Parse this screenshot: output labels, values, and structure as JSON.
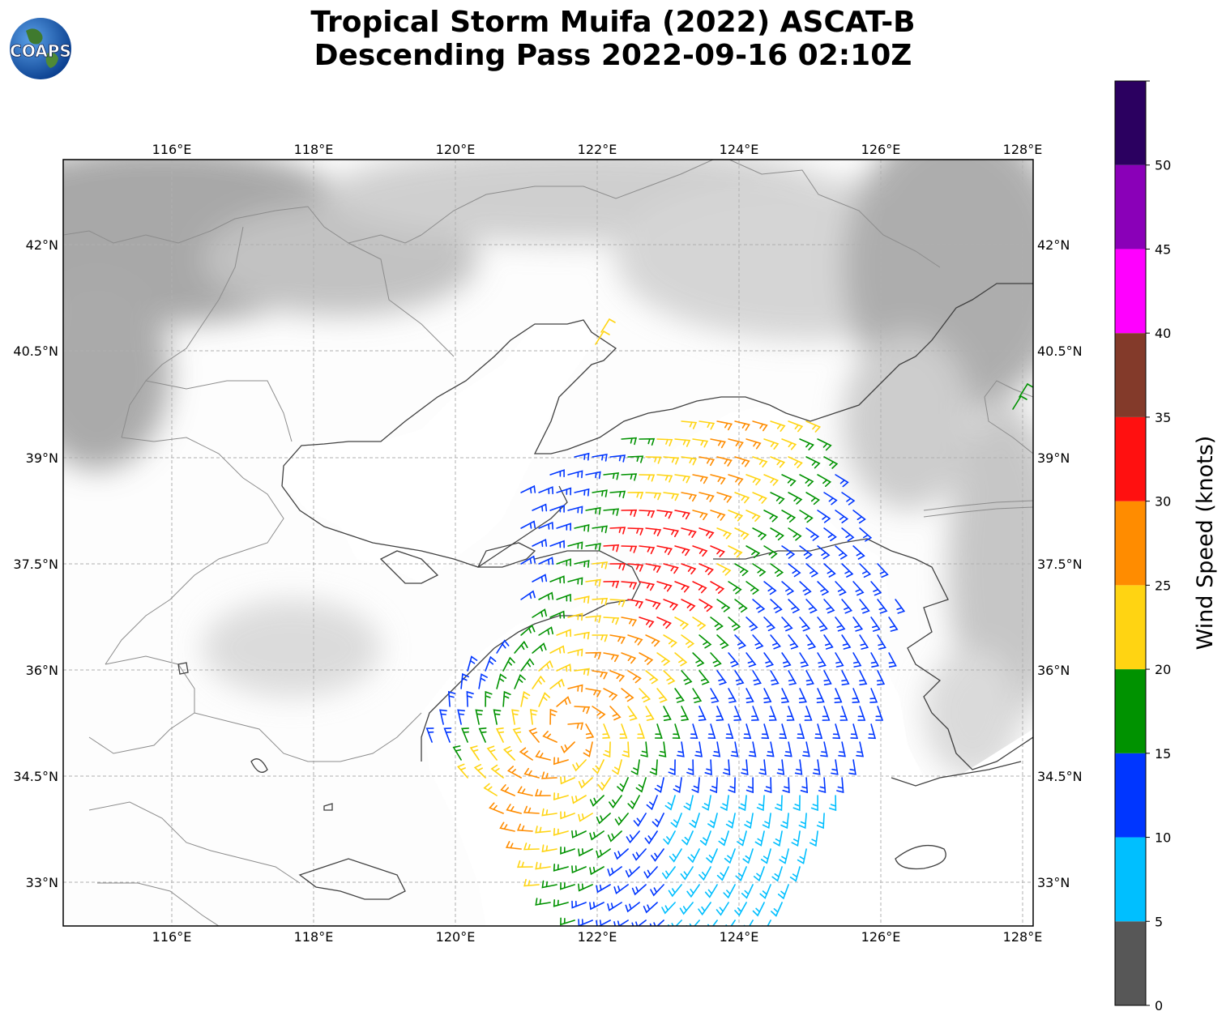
{
  "title": {
    "line1": "Tropical Storm Muifa (2022) ASCAT-B",
    "line2": "Descending Pass 2022-09-16 02:10Z"
  },
  "logo": {
    "text": "COAPS",
    "icon": "globe-logo-icon"
  },
  "map": {
    "lon_range": [
      114.5,
      128.15
    ],
    "lat_range": [
      32.45,
      43.25
    ],
    "lon_ticks": [
      "116°E",
      "118°E",
      "120°E",
      "122°E",
      "124°E",
      "126°E",
      "128°E"
    ],
    "lat_ticks": [
      "42°N",
      "40.5°N",
      "39°N",
      "37.5°N",
      "36°N",
      "34.5°N",
      "33°N"
    ],
    "grid": true,
    "background": "grayscale terrain",
    "coastline_color": "#404040",
    "border_color": "#888888"
  },
  "colorbar": {
    "label": "Wind Speed (knots)",
    "ticks": [
      "0",
      "5",
      "10",
      "15",
      "20",
      "25",
      "30",
      "35",
      "40",
      "45",
      "50"
    ],
    "bins": [
      {
        "min": 0,
        "max": 5,
        "color": "#575757"
      },
      {
        "min": 5,
        "max": 10,
        "color": "#00bfff"
      },
      {
        "min": 10,
        "max": 15,
        "color": "#0036ff"
      },
      {
        "min": 15,
        "max": 20,
        "color": "#009200"
      },
      {
        "min": 20,
        "max": 25,
        "color": "#ffd412"
      },
      {
        "min": 25,
        "max": 30,
        "color": "#ff8c00"
      },
      {
        "min": 30,
        "max": 35,
        "color": "#ff1010"
      },
      {
        "min": 35,
        "max": 40,
        "color": "#833a2a"
      },
      {
        "min": 40,
        "max": 45,
        "color": "#ff00ff"
      },
      {
        "min": 45,
        "max": 50,
        "color": "#8a00b8"
      },
      {
        "min": 50,
        "max": 55,
        "color": "#2b0060"
      }
    ]
  },
  "wind_field": {
    "type": "wind barbs",
    "colored_by": "wind speed (knots)"
  }
}
